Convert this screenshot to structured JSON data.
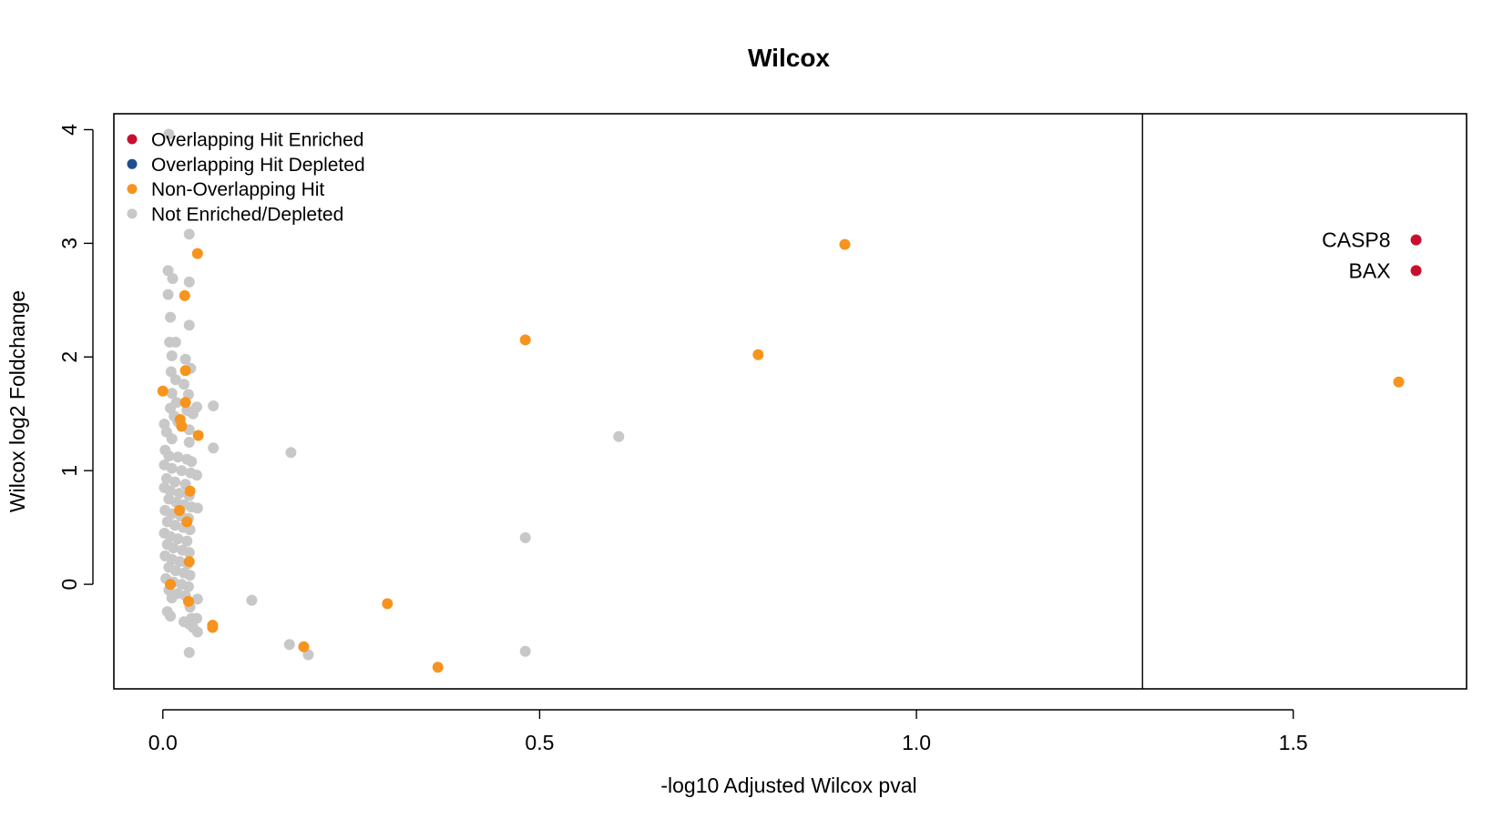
{
  "chart_data": {
    "type": "scatter",
    "title": "Wilcox",
    "xlabel": "-log10 Adjusted Wilcox pval",
    "ylabel": "Wilcox log2 Foldchange",
    "xlim": [
      -0.065,
      1.73
    ],
    "ylim": [
      -0.92,
      4.14
    ],
    "x_ticks": [
      0.0,
      0.5,
      1.0,
      1.5
    ],
    "x_tick_labels": [
      "0.0",
      "0.5",
      "1.0",
      "1.5"
    ],
    "y_ticks": [
      0,
      1,
      2,
      3,
      4
    ],
    "y_tick_labels": [
      "0",
      "1",
      "2",
      "3",
      "4"
    ],
    "threshold_x": 1.3,
    "grid": false,
    "legend": {
      "position": "top-left",
      "entries": [
        {
          "label": "Overlapping Hit Enriched",
          "color": "#C8102E"
        },
        {
          "label": "Overlapping Hit Depleted",
          "color": "#1F4E8C"
        },
        {
          "label": "Non-Overlapping Hit",
          "color": "#F7941D"
        },
        {
          "label": "Not Enriched/Depleted",
          "color": "#C8C8C8"
        }
      ]
    },
    "series": [
      {
        "category": "Not Enriched/Depleted",
        "color": "#C8C8C8",
        "points": [
          [
            0.008,
            3.96
          ],
          [
            0.035,
            3.08
          ],
          [
            0.007,
            2.76
          ],
          [
            0.013,
            2.69
          ],
          [
            0.035,
            2.66
          ],
          [
            0.007,
            2.55
          ],
          [
            0.01,
            2.35
          ],
          [
            0.035,
            2.28
          ],
          [
            0.009,
            2.13
          ],
          [
            0.017,
            2.13
          ],
          [
            0.012,
            2.01
          ],
          [
            0.03,
            1.98
          ],
          [
            0.037,
            1.9
          ],
          [
            0.011,
            1.87
          ],
          [
            0.017,
            1.8
          ],
          [
            0.028,
            1.76
          ],
          [
            0.034,
            1.67
          ],
          [
            0.012,
            1.68
          ],
          [
            0.018,
            1.6
          ],
          [
            0.045,
            1.56
          ],
          [
            0.067,
            1.57
          ],
          [
            0.01,
            1.55
          ],
          [
            0.032,
            1.53
          ],
          [
            0.04,
            1.5
          ],
          [
            0.015,
            1.48
          ],
          [
            0.002,
            1.41
          ],
          [
            0.02,
            1.43
          ],
          [
            0.035,
            1.36
          ],
          [
            0.005,
            1.34
          ],
          [
            0.012,
            1.28
          ],
          [
            0.035,
            1.25
          ],
          [
            0.067,
            1.2
          ],
          [
            0.003,
            1.18
          ],
          [
            0.008,
            1.13
          ],
          [
            0.02,
            1.12
          ],
          [
            0.032,
            1.1
          ],
          [
            0.038,
            1.08
          ],
          [
            0.002,
            1.05
          ],
          [
            0.012,
            1.02
          ],
          [
            0.025,
            1.0
          ],
          [
            0.037,
            0.98
          ],
          [
            0.045,
            0.96
          ],
          [
            0.005,
            0.93
          ],
          [
            0.016,
            0.9
          ],
          [
            0.03,
            0.88
          ],
          [
            0.002,
            0.85
          ],
          [
            0.01,
            0.82
          ],
          [
            0.022,
            0.8
          ],
          [
            0.035,
            0.78
          ],
          [
            0.008,
            0.75
          ],
          [
            0.018,
            0.72
          ],
          [
            0.028,
            0.7
          ],
          [
            0.038,
            0.68
          ],
          [
            0.046,
            0.67
          ],
          [
            0.003,
            0.65
          ],
          [
            0.012,
            0.62
          ],
          [
            0.024,
            0.6
          ],
          [
            0.034,
            0.58
          ],
          [
            0.006,
            0.55
          ],
          [
            0.016,
            0.52
          ],
          [
            0.027,
            0.5
          ],
          [
            0.036,
            0.48
          ],
          [
            0.002,
            0.45
          ],
          [
            0.01,
            0.42
          ],
          [
            0.02,
            0.4
          ],
          [
            0.032,
            0.38
          ],
          [
            0.006,
            0.35
          ],
          [
            0.014,
            0.32
          ],
          [
            0.026,
            0.3
          ],
          [
            0.035,
            0.28
          ],
          [
            0.003,
            0.25
          ],
          [
            0.012,
            0.22
          ],
          [
            0.022,
            0.2
          ],
          [
            0.033,
            0.18
          ],
          [
            0.008,
            0.15
          ],
          [
            0.017,
            0.12
          ],
          [
            0.028,
            0.1
          ],
          [
            0.036,
            0.08
          ],
          [
            0.004,
            0.05
          ],
          [
            0.014,
            0.02
          ],
          [
            0.025,
            0.0
          ],
          [
            0.034,
            -0.02
          ],
          [
            0.008,
            -0.05
          ],
          [
            0.02,
            -0.08
          ],
          [
            0.03,
            -0.1
          ],
          [
            0.012,
            -0.12
          ],
          [
            0.046,
            -0.13
          ],
          [
            0.036,
            -0.2
          ],
          [
            0.006,
            -0.24
          ],
          [
            0.01,
            -0.28
          ],
          [
            0.038,
            -0.3
          ],
          [
            0.045,
            -0.3
          ],
          [
            0.028,
            -0.33
          ],
          [
            0.035,
            -0.35
          ],
          [
            0.04,
            -0.38
          ],
          [
            0.046,
            -0.42
          ],
          [
            0.035,
            -0.6
          ],
          [
            0.118,
            -0.14
          ],
          [
            0.17,
            1.16
          ],
          [
            0.168,
            -0.53
          ],
          [
            0.193,
            -0.62
          ],
          [
            0.481,
            0.41
          ],
          [
            0.481,
            -0.59
          ],
          [
            0.605,
            1.3
          ]
        ]
      },
      {
        "category": "Non-Overlapping Hit",
        "color": "#F7941D",
        "points": [
          [
            0.046,
            2.91
          ],
          [
            0.029,
            2.54
          ],
          [
            0.03,
            1.88
          ],
          [
            0.0,
            1.7
          ],
          [
            0.03,
            1.6
          ],
          [
            0.023,
            1.45
          ],
          [
            0.025,
            1.39
          ],
          [
            0.047,
            1.31
          ],
          [
            0.036,
            0.82
          ],
          [
            0.022,
            0.65
          ],
          [
            0.032,
            0.55
          ],
          [
            0.035,
            0.2
          ],
          [
            0.01,
            0.0
          ],
          [
            0.034,
            -0.15
          ],
          [
            0.066,
            -0.36
          ],
          [
            0.066,
            -0.38
          ],
          [
            0.187,
            -0.55
          ],
          [
            0.298,
            -0.17
          ],
          [
            0.365,
            -0.73
          ],
          [
            0.481,
            2.15
          ],
          [
            0.79,
            2.02
          ],
          [
            0.905,
            2.99
          ],
          [
            1.64,
            1.78
          ]
        ]
      },
      {
        "category": "Overlapping Hit Enriched",
        "color": "#C8102E",
        "points": [
          [
            1.663,
            3.03
          ],
          [
            1.663,
            2.76
          ]
        ],
        "labels": [
          "CASP8",
          "BAX"
        ]
      }
    ]
  }
}
